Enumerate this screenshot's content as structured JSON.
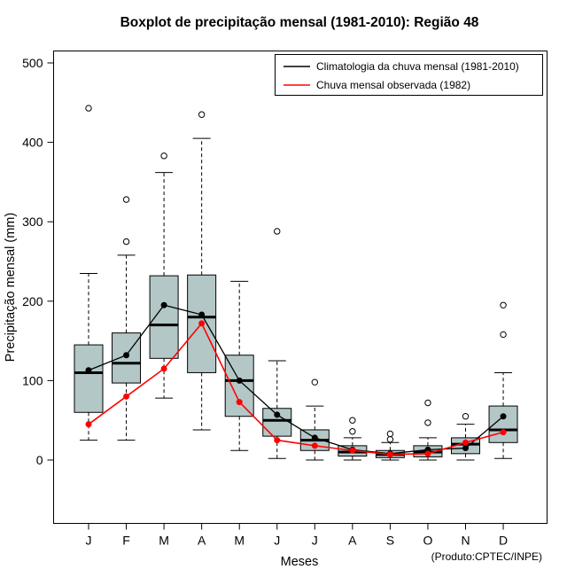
{
  "title": "Boxplot de precipitação mensal (1981-2010): Região 48",
  "axes": {
    "x_label": "Meses",
    "y_label": "Precipitação mensal (mm)"
  },
  "footer": "(Produto:CPTEC/INPE)",
  "legend": [
    {
      "label": "Climatologia da chuva mensal (1981-2010)",
      "color": "#000000"
    },
    {
      "label": "Chuva mensal observada (1982)",
      "color": "#ff0000"
    }
  ],
  "chart_data": {
    "type": "boxplot",
    "title": "Boxplot de precipitação mensal (1981-2010): Região 48",
    "xlabel": "Meses",
    "ylabel": "Precipitação mensal (mm)",
    "ylim": [
      0,
      500
    ],
    "yticks": [
      0,
      100,
      200,
      300,
      400,
      500
    ],
    "grid": false,
    "legend_position": "top-right",
    "box_fill": "#b3c7c7",
    "categories": [
      "J",
      "F",
      "M",
      "A",
      "M",
      "J",
      "J",
      "A",
      "S",
      "O",
      "N",
      "D"
    ],
    "boxes": [
      {
        "month": "J",
        "whisker_low": 25,
        "q1": 60,
        "median": 110,
        "q3": 145,
        "whisker_high": 235,
        "outliers": [
          443
        ]
      },
      {
        "month": "F",
        "whisker_low": 25,
        "q1": 97,
        "median": 122,
        "q3": 160,
        "whisker_high": 258,
        "outliers": [
          275,
          328
        ]
      },
      {
        "month": "M",
        "whisker_low": 78,
        "q1": 128,
        "median": 170,
        "q3": 232,
        "whisker_high": 362,
        "outliers": [
          383
        ]
      },
      {
        "month": "A",
        "whisker_low": 38,
        "q1": 110,
        "median": 180,
        "q3": 233,
        "whisker_high": 405,
        "outliers": [
          435
        ]
      },
      {
        "month": "M",
        "whisker_low": 12,
        "q1": 55,
        "median": 100,
        "q3": 132,
        "whisker_high": 225,
        "outliers": []
      },
      {
        "month": "J",
        "whisker_low": 2,
        "q1": 30,
        "median": 50,
        "q3": 65,
        "whisker_high": 125,
        "outliers": [
          288
        ]
      },
      {
        "month": "J",
        "whisker_low": 0,
        "q1": 12,
        "median": 25,
        "q3": 38,
        "whisker_high": 68,
        "outliers": [
          98
        ]
      },
      {
        "month": "A",
        "whisker_low": 0,
        "q1": 5,
        "median": 10,
        "q3": 18,
        "whisker_high": 28,
        "outliers": [
          36,
          50
        ]
      },
      {
        "month": "S",
        "whisker_low": 0,
        "q1": 3,
        "median": 7,
        "q3": 12,
        "whisker_high": 22,
        "outliers": [
          26,
          33
        ]
      },
      {
        "month": "O",
        "whisker_low": 0,
        "q1": 4,
        "median": 10,
        "q3": 18,
        "whisker_high": 28,
        "outliers": [
          47,
          72
        ]
      },
      {
        "month": "N",
        "whisker_low": 0,
        "q1": 8,
        "median": 20,
        "q3": 28,
        "whisker_high": 45,
        "outliers": [
          55
        ]
      },
      {
        "month": "D",
        "whisker_low": 2,
        "q1": 22,
        "median": 38,
        "q3": 68,
        "whisker_high": 110,
        "outliers": [
          158,
          195
        ]
      }
    ],
    "series": [
      {
        "name": "Climatologia da chuva mensal (1981-2010)",
        "color": "#000000",
        "values": [
          113,
          132,
          195,
          183,
          100,
          57,
          28,
          13,
          8,
          13,
          15,
          55
        ]
      },
      {
        "name": "Chuva mensal observada (1982)",
        "color": "#ff0000",
        "values": [
          45,
          80,
          115,
          172,
          73,
          25,
          18,
          12,
          7,
          8,
          22,
          35
        ]
      }
    ]
  }
}
